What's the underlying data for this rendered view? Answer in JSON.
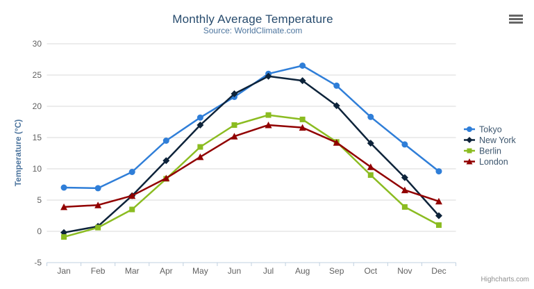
{
  "chart": {
    "credits": "Highcharts.com",
    "icons": {
      "export_menu": "hamburger-icon"
    }
  },
  "chart_data": {
    "type": "line",
    "title": "Monthly Average Temperature",
    "subtitle": "Source: WorldClimate.com",
    "xlabel": "",
    "ylabel": "Temperature (°C)",
    "categories": [
      "Jan",
      "Feb",
      "Mar",
      "Apr",
      "May",
      "Jun",
      "Jul",
      "Aug",
      "Sep",
      "Oct",
      "Nov",
      "Dec"
    ],
    "ylim": [
      -5,
      30
    ],
    "ytick_step": 5,
    "grid": true,
    "legend_position": "right",
    "series": [
      {
        "name": "Tokyo",
        "color": "#2f7ed8",
        "marker": "circle",
        "values": [
          7.0,
          6.9,
          9.5,
          14.5,
          18.2,
          21.5,
          25.2,
          26.5,
          23.3,
          18.3,
          13.9,
          9.6
        ]
      },
      {
        "name": "New York",
        "color": "#0d233a",
        "marker": "diamond",
        "values": [
          -0.2,
          0.8,
          5.7,
          11.3,
          17.0,
          22.0,
          24.8,
          24.1,
          20.1,
          14.1,
          8.6,
          2.5
        ]
      },
      {
        "name": "Berlin",
        "color": "#8bbc21",
        "marker": "square",
        "values": [
          -0.9,
          0.6,
          3.5,
          8.4,
          13.5,
          17.0,
          18.6,
          17.9,
          14.3,
          9.0,
          3.9,
          1.0
        ]
      },
      {
        "name": "London",
        "color": "#910000",
        "marker": "triangle",
        "values": [
          3.9,
          4.2,
          5.7,
          8.5,
          11.9,
          15.2,
          17.0,
          16.6,
          14.2,
          10.3,
          6.6,
          4.8
        ]
      }
    ]
  },
  "colors": {
    "background": "#ffffff",
    "grid": "#d8d8d8",
    "axis_line": "#c0d0e0",
    "tick_label": "#606060",
    "title": "#274b6d",
    "subtitle": "#4d759e",
    "axis_title": "#4d759e",
    "legend_text": "#3e576f",
    "credits": "#909090",
    "menu_icon": "#666666"
  }
}
